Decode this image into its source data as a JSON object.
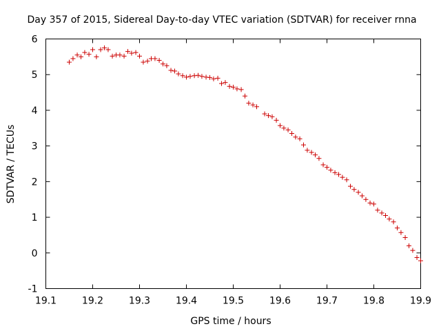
{
  "chart_data": {
    "type": "scatter",
    "title": "Day 357 of 2015, Sidereal Day-to-day VTEC variation (SDTVAR) for receiver rnna",
    "xlabel": "GPS time / hours",
    "ylabel": "SDTVAR / TECUs",
    "xlim": [
      19.1,
      19.9
    ],
    "ylim": [
      -1,
      6
    ],
    "xticks": [
      "19.1",
      "19.2",
      "19.3",
      "19.4",
      "19.5",
      "19.6",
      "19.7",
      "19.8",
      "19.9"
    ],
    "yticks": [
      "-1",
      "0",
      "1",
      "2",
      "3",
      "4",
      "5",
      "6"
    ],
    "grid": false,
    "legend": "none",
    "marker": "+",
    "series": [
      {
        "name": "SDTVAR",
        "color": "#cc0000",
        "x": [
          19.15,
          19.158,
          19.167,
          19.175,
          19.183,
          19.192,
          19.2,
          19.208,
          19.217,
          19.225,
          19.233,
          19.242,
          19.25,
          19.258,
          19.267,
          19.275,
          19.283,
          19.292,
          19.3,
          19.308,
          19.317,
          19.325,
          19.333,
          19.342,
          19.35,
          19.358,
          19.367,
          19.375,
          19.383,
          19.392,
          19.4,
          19.408,
          19.417,
          19.425,
          19.433,
          19.442,
          19.45,
          19.458,
          19.467,
          19.475,
          19.483,
          19.492,
          19.5,
          19.508,
          19.517,
          19.525,
          19.533,
          19.542,
          19.55,
          19.567,
          19.575,
          19.583,
          19.592,
          19.6,
          19.608,
          19.617,
          19.625,
          19.633,
          19.642,
          19.65,
          19.658,
          19.667,
          19.675,
          19.683,
          19.692,
          19.7,
          19.708,
          19.717,
          19.725,
          19.733,
          19.742,
          19.75,
          19.758,
          19.767,
          19.775,
          19.783,
          19.792,
          19.8,
          19.808,
          19.817,
          19.825,
          19.833,
          19.842,
          19.85,
          19.858,
          19.867,
          19.875,
          19.883,
          19.892,
          19.9
        ],
        "y": [
          5.35,
          5.45,
          5.55,
          5.5,
          5.62,
          5.57,
          5.7,
          5.5,
          5.7,
          5.75,
          5.7,
          5.52,
          5.55,
          5.55,
          5.52,
          5.65,
          5.6,
          5.62,
          5.52,
          5.35,
          5.38,
          5.45,
          5.45,
          5.4,
          5.3,
          5.25,
          5.12,
          5.1,
          5.02,
          4.97,
          4.93,
          4.95,
          4.97,
          4.98,
          4.95,
          4.93,
          4.92,
          4.88,
          4.9,
          4.75,
          4.78,
          4.67,
          4.65,
          4.6,
          4.58,
          4.4,
          4.2,
          4.15,
          4.1,
          3.9,
          3.85,
          3.82,
          3.72,
          3.57,
          3.5,
          3.45,
          3.35,
          3.25,
          3.2,
          3.03,
          2.88,
          2.82,
          2.75,
          2.65,
          2.47,
          2.4,
          2.32,
          2.25,
          2.2,
          2.12,
          2.05,
          1.87,
          1.78,
          1.7,
          1.6,
          1.5,
          1.4,
          1.37,
          1.2,
          1.12,
          1.05,
          0.95,
          0.87,
          0.7,
          0.57,
          0.43,
          0.2,
          0.07,
          -0.13,
          -0.22
        ]
      }
    ]
  }
}
